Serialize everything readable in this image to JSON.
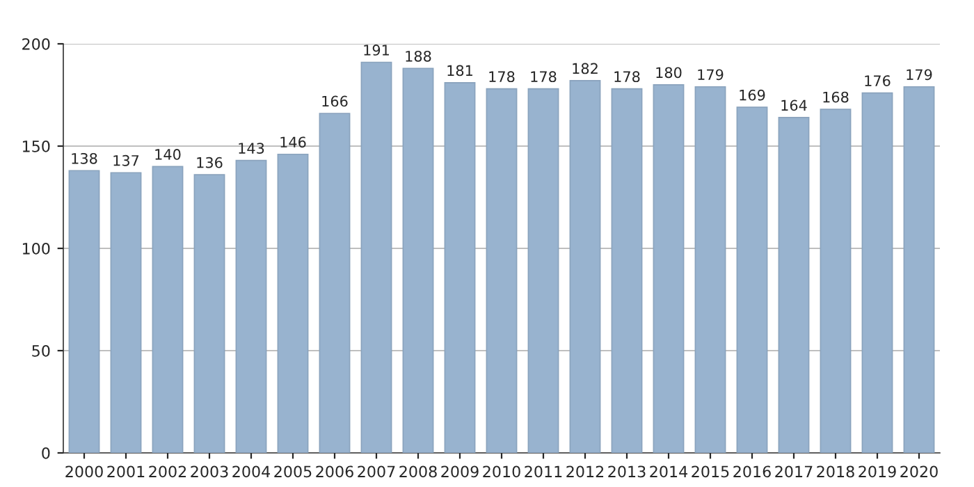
{
  "chart_data": {
    "type": "bar",
    "categories": [
      "2000",
      "2001",
      "2002",
      "2003",
      "2004",
      "2005",
      "2006",
      "2007",
      "2008",
      "2009",
      "2010",
      "2011",
      "2012",
      "2013",
      "2014",
      "2015",
      "2016",
      "2017",
      "2018",
      "2019",
      "2020"
    ],
    "values": [
      138,
      137,
      140,
      136,
      143,
      146,
      166,
      191,
      188,
      181,
      178,
      178,
      182,
      178,
      180,
      179,
      169,
      164,
      168,
      176,
      179
    ],
    "color": "#98b3cf",
    "ylim": [
      0,
      200
    ],
    "yticks": [
      0,
      50,
      100,
      150,
      200
    ],
    "grid": "y",
    "data_labels": true
  }
}
